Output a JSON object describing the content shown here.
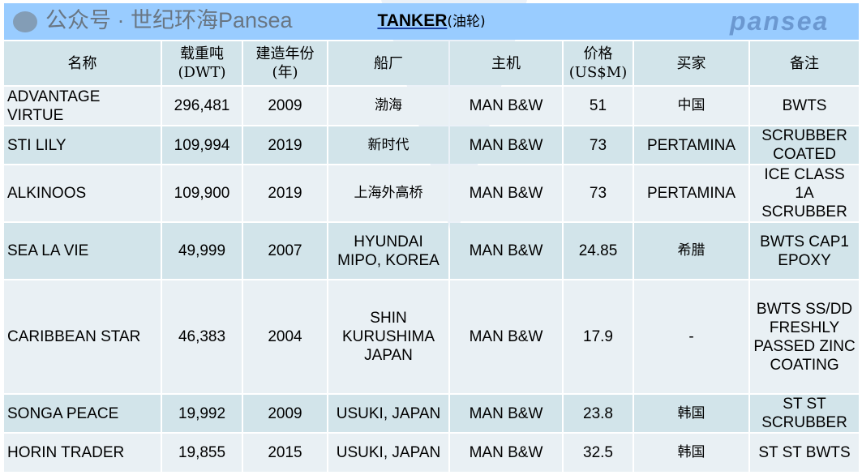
{
  "title": {
    "main": "TANKER",
    "cn": "(油轮)"
  },
  "headers": [
    "名称",
    "载重吨\n(DWT)",
    "建造年份\n(年)",
    "船厂",
    "主机",
    "价格\n(US$M)",
    "买家",
    "备注"
  ],
  "rows": [
    {
      "name": "ADVANTAGE VIRTUE",
      "dwt": "296,481",
      "year": "2009",
      "yard": "渤海",
      "engine": "MAN B&W",
      "price": "51",
      "buyer": "中国",
      "remarks": "BWTS"
    },
    {
      "name": "STI LILY",
      "dwt": "109,994",
      "year": "2019",
      "yard": "新时代",
      "engine": "MAN B&W",
      "price": "73",
      "buyer": "PERTAMINA",
      "remarks": "SCRUBBER COATED"
    },
    {
      "name": "ALKINOOS",
      "dwt": "109,900",
      "year": "2019",
      "yard": "上海外高桥",
      "engine": "MAN B&W",
      "price": "73",
      "buyer": "PERTAMINA",
      "remarks": "ICE CLASS 1A SCRUBBER"
    },
    {
      "name": "SEA LA VIE",
      "dwt": "49,999",
      "year": "2007",
      "yard": "HYUNDAI MIPO, KOREA",
      "engine": "MAN B&W",
      "price": "24.85",
      "buyer": "希腊",
      "remarks": "BWTS CAP1 EPOXY"
    },
    {
      "name": "CARIBBEAN STAR",
      "dwt": "46,383",
      "year": "2004",
      "yard": "SHIN KURUSHIMA JAPAN",
      "engine": "MAN B&W",
      "price": "17.9",
      "buyer": "-",
      "remarks": "BWTS SS/DD FRESHLY PASSED ZINC COATING"
    },
    {
      "name": "SONGA PEACE",
      "dwt": "19,992",
      "year": "2009",
      "yard": "USUKI, JAPAN",
      "engine": "MAN B&W",
      "price": "23.8",
      "buyer": "韩国",
      "remarks": "ST ST SCRUBBER"
    },
    {
      "name": "HORIN TRADER",
      "dwt": "19,855",
      "year": "2015",
      "yard": "USUKI, JAPAN",
      "engine": "MAN B&W",
      "price": "32.5",
      "buyer": "韩国",
      "remarks": "ST ST BWTS"
    }
  ],
  "watermark": {
    "logo": "pansea",
    "text": "公众号 · 世纪环海Pansea"
  },
  "colors": {
    "title_bg": "#99ccff",
    "row_dark": "#d2e4ea",
    "row_light": "#e9f0f4"
  }
}
